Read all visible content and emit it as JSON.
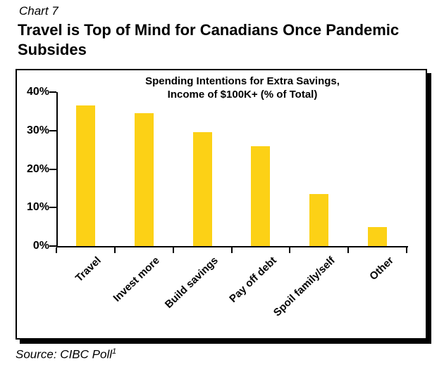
{
  "header": {
    "chart_label": "Chart 7",
    "title": "Travel is Top of Mind for Canadians Once Pandemic Subsides",
    "title_line1": "Travel is Top of Mind for Canadians Once Pandemic",
    "title_line2": "Subsides"
  },
  "chart_data": {
    "type": "bar",
    "title": "Spending Intentions for Extra Savings, Income of $100K+ (% of Total)",
    "title_lines": [
      "Spending Intentions for Extra Savings,",
      "Income of $100K+ (% of Total)"
    ],
    "categories": [
      "Travel",
      "Invest more",
      "Build savings",
      "Pay off debt",
      "Spoil family/self",
      "Other"
    ],
    "values": [
      36.5,
      34.5,
      29.5,
      26,
      13.5,
      5
    ],
    "xlabel": "",
    "ylabel": "",
    "ylim": [
      0,
      40
    ],
    "yticks": [
      0,
      10,
      20,
      30,
      40
    ],
    "ytick_labels": [
      "0%",
      "10%",
      "20%",
      "30%",
      "40%"
    ],
    "bar_color": "#FCD116",
    "grid": false,
    "legend": false
  },
  "source": {
    "text": "Source: CIBC Poll",
    "superscript": "1"
  }
}
